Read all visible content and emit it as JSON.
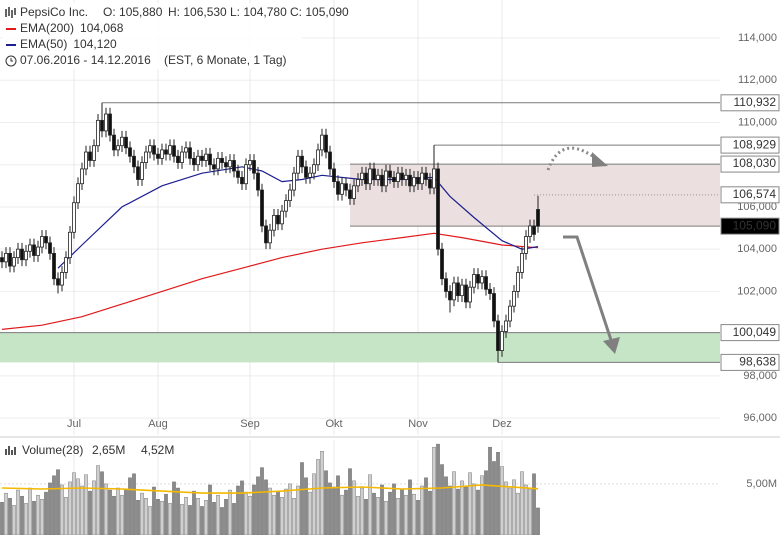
{
  "chart_data": [
    {
      "type": "candlestick",
      "title": "PepsiCo Inc.",
      "quote": [
        {
          "name": "O:",
          "value": "105,880"
        },
        {
          "name": "H:",
          "value": "106,530"
        },
        {
          "name": "L:",
          "value": "104,780"
        },
        {
          "name": "C:",
          "value": "105,090"
        }
      ],
      "date_range": "07.06.2016 - 14.12.2016",
      "period": "(EST, 6 Monate, 1 Tag)",
      "open": [
        103.6,
        103.4,
        103.8,
        103.2,
        103.6,
        104.0,
        103.5,
        103.9,
        104.2,
        103.7,
        104.1,
        104.6,
        104.3,
        103.8,
        102.6,
        102.3,
        102.9,
        103.6,
        104.8,
        106.2,
        107.1,
        107.8,
        108.6,
        108.2,
        108.9,
        110.1,
        109.6,
        110.4,
        109.4,
        108.7,
        108.9,
        109.3,
        108.8,
        108.4,
        107.9,
        107.3,
        108.1,
        108.6,
        108.9,
        108.5,
        108.3,
        108.7,
        108.5,
        108.9,
        108.4,
        108.1,
        108.6,
        108.8,
        108.3,
        108.0,
        108.4,
        108.2,
        108.5,
        108.0,
        107.8,
        108.3,
        108.1,
        107.9,
        108.2,
        107.7,
        107.4,
        107.1,
        108.0,
        108.2,
        107.6,
        106.8,
        105.1,
        104.3,
        104.9,
        105.6,
        105.2,
        105.8,
        106.3,
        106.8,
        107.6,
        108.4,
        107.9,
        107.4,
        107.6,
        108.0,
        108.7,
        109.4,
        108.6,
        107.8,
        107.2,
        106.6,
        107.1,
        106.8,
        106.4,
        107.0,
        107.3,
        107.6,
        107.1,
        107.8,
        107.3,
        107.5,
        107.0,
        107.7,
        107.4,
        107.2,
        107.6,
        107.3,
        107.5,
        107.0,
        107.4,
        107.1,
        107.6,
        107.3,
        106.9,
        107.8,
        104.0,
        102.6,
        102.0,
        101.6,
        102.4,
        101.8,
        102.3,
        101.5,
        102.2,
        102.8,
        102.4,
        102.7,
        102.1,
        101.9,
        100.6,
        99.2,
        100.1,
        100.6,
        101.3,
        102.0,
        102.9,
        103.8,
        104.6,
        105.1,
        105.88
      ],
      "high": [
        103.9,
        104.1,
        104.1,
        103.9,
        104.3,
        104.3,
        104.2,
        104.5,
        104.5,
        104.4,
        104.9,
        104.9,
        104.6,
        104.1,
        102.9,
        103.2,
        103.9,
        105.1,
        106.5,
        107.4,
        108.1,
        108.9,
        108.9,
        109.2,
        110.4,
        110.932,
        110.7,
        110.7,
        109.7,
        109.2,
        109.6,
        109.6,
        109.1,
        108.7,
        108.2,
        108.4,
        108.9,
        109.2,
        109.2,
        108.8,
        109.0,
        109.0,
        109.2,
        109.2,
        108.7,
        108.9,
        109.1,
        109.1,
        108.6,
        108.7,
        108.7,
        108.8,
        108.8,
        108.3,
        108.6,
        108.6,
        108.4,
        108.5,
        108.5,
        108.0,
        107.7,
        108.3,
        108.5,
        108.5,
        107.9,
        107.1,
        105.4,
        105.2,
        105.9,
        105.9,
        106.1,
        106.6,
        107.1,
        107.9,
        108.7,
        108.7,
        108.2,
        107.9,
        108.3,
        109.0,
        109.7,
        109.7,
        108.9,
        108.1,
        107.5,
        107.4,
        107.4,
        107.1,
        107.3,
        107.6,
        107.9,
        107.9,
        108.1,
        108.1,
        107.8,
        107.8,
        108.0,
        108.0,
        107.7,
        107.9,
        107.9,
        107.8,
        107.8,
        107.7,
        107.7,
        107.9,
        107.9,
        107.6,
        108.929,
        108.1,
        104.3,
        102.9,
        102.3,
        102.7,
        102.7,
        102.6,
        102.6,
        102.5,
        103.1,
        103.1,
        103.0,
        103.0,
        102.4,
        102.2,
        100.9,
        100.4,
        100.9,
        101.6,
        102.3,
        103.2,
        104.1,
        104.9,
        105.4,
        105.4,
        106.53
      ],
      "low": [
        103.1,
        103.1,
        102.9,
        102.9,
        103.3,
        103.2,
        103.2,
        103.6,
        103.4,
        103.4,
        103.8,
        104.0,
        103.5,
        102.3,
        101.9,
        102.0,
        102.6,
        103.3,
        104.5,
        105.9,
        106.8,
        107.5,
        107.9,
        107.9,
        108.6,
        109.3,
        109.3,
        109.1,
        108.4,
        108.4,
        108.6,
        108.5,
        108.1,
        107.6,
        107.0,
        107.0,
        107.8,
        108.3,
        108.2,
        108.0,
        108.0,
        108.2,
        108.2,
        108.1,
        107.8,
        107.8,
        108.3,
        108.0,
        107.7,
        107.7,
        107.9,
        107.9,
        107.7,
        107.5,
        107.5,
        107.8,
        107.6,
        107.6,
        107.4,
        107.1,
        106.8,
        106.8,
        107.7,
        107.3,
        106.5,
        104.8,
        104.0,
        104.0,
        104.6,
        104.9,
        104.9,
        105.5,
        106.0,
        106.5,
        107.3,
        107.6,
        107.1,
        107.1,
        107.3,
        107.7,
        108.4,
        108.3,
        107.5,
        106.9,
        106.3,
        106.3,
        106.5,
        106.1,
        106.1,
        106.7,
        107.0,
        106.8,
        106.8,
        107.0,
        107.0,
        106.7,
        106.7,
        107.1,
        106.9,
        106.9,
        107.0,
        107.0,
        106.7,
        106.7,
        106.8,
        106.8,
        107.0,
        106.6,
        106.6,
        103.7,
        102.3,
        101.7,
        101.0,
        101.3,
        101.5,
        101.5,
        101.2,
        101.2,
        101.9,
        102.1,
        102.1,
        101.8,
        101.6,
        100.3,
        98.638,
        98.9,
        99.8,
        100.3,
        101.0,
        101.7,
        102.6,
        103.5,
        104.3,
        104.4,
        104.78
      ],
      "close": [
        103.4,
        103.8,
        103.2,
        103.6,
        104.0,
        103.5,
        103.9,
        104.2,
        103.7,
        104.1,
        104.6,
        104.3,
        103.8,
        102.6,
        102.3,
        102.9,
        103.6,
        104.8,
        106.2,
        107.1,
        107.8,
        108.6,
        108.2,
        108.9,
        110.1,
        109.6,
        110.4,
        109.4,
        108.7,
        108.9,
        109.3,
        108.8,
        108.4,
        107.9,
        107.3,
        108.1,
        108.6,
        108.9,
        108.5,
        108.3,
        108.7,
        108.5,
        108.9,
        108.4,
        108.1,
        108.6,
        108.8,
        108.3,
        108.0,
        108.4,
        108.2,
        108.5,
        108.0,
        107.8,
        108.3,
        108.1,
        107.9,
        108.2,
        107.7,
        107.4,
        107.1,
        108.0,
        108.2,
        107.6,
        106.8,
        105.1,
        104.3,
        104.9,
        105.6,
        105.2,
        105.8,
        106.3,
        106.8,
        107.6,
        108.4,
        107.9,
        107.4,
        107.6,
        108.0,
        108.7,
        109.4,
        108.6,
        107.8,
        107.2,
        106.6,
        107.1,
        106.8,
        106.4,
        107.0,
        107.3,
        107.6,
        107.1,
        107.8,
        107.3,
        107.5,
        107.0,
        107.7,
        107.4,
        107.2,
        107.6,
        107.3,
        107.5,
        107.0,
        107.4,
        107.1,
        107.6,
        107.3,
        106.9,
        107.8,
        104.0,
        102.6,
        102.0,
        101.6,
        102.4,
        101.8,
        102.3,
        101.5,
        102.2,
        102.8,
        102.4,
        102.7,
        102.1,
        101.9,
        100.6,
        99.2,
        100.1,
        100.6,
        101.3,
        102.0,
        102.9,
        103.8,
        104.6,
        105.1,
        104.7,
        105.09
      ],
      "series": [
        {
          "name": "EMA(200)",
          "color": "#e0191b",
          "current_label": "104,068",
          "x": [
            0,
            10,
            20,
            30,
            40,
            50,
            60,
            70,
            80,
            90,
            100,
            108,
            115,
            125,
            134
          ],
          "values": [
            100.2,
            100.4,
            100.8,
            101.4,
            102.0,
            102.6,
            103.1,
            103.6,
            104.0,
            104.3,
            104.55,
            104.75,
            104.55,
            104.2,
            104.068
          ]
        },
        {
          "name": "EMA(50)",
          "color": "#1b1f8f",
          "current_label": "104,120",
          "x": [
            14,
            20,
            30,
            40,
            50,
            60,
            65,
            70,
            75,
            80,
            90,
            100,
            108,
            112,
            118,
            125,
            130,
            134
          ],
          "values": [
            103.1,
            104.2,
            106.0,
            107.0,
            107.6,
            107.9,
            107.7,
            107.2,
            107.3,
            107.5,
            107.3,
            107.3,
            107.4,
            106.5,
            105.5,
            104.4,
            104.0,
            104.12
          ]
        }
      ],
      "levels": [
        {
          "value": 110.932,
          "label": "110,932",
          "start": 25
        },
        {
          "value": 108.929,
          "label": "108,929",
          "start": 108
        },
        {
          "value": 108.03,
          "label": "108,030",
          "start": 87
        },
        {
          "value": 106.574,
          "label": "106,574",
          "start": 133,
          "dash": "dotted"
        },
        {
          "value": 105.09,
          "label": "105,090",
          "start": 87,
          "highlight": true
        },
        {
          "value": 100.049,
          "label": "100,049",
          "start": -0.5
        },
        {
          "value": 98.638,
          "label": "98,638",
          "start": 124
        }
      ],
      "zones": [
        {
          "from": 105.09,
          "to": 108.03,
          "start": 87,
          "color": "#ecdfdf"
        },
        {
          "from": 98.638,
          "to": 100.049,
          "start": -0.5,
          "color": "#c6e4c6"
        }
      ],
      "xlim": [
        -0.5,
        179.5
      ],
      "xticks": [
        {
          "value": 18,
          "label": "Jul"
        },
        {
          "value": 39,
          "label": "Aug"
        },
        {
          "value": 62,
          "label": "Sep"
        },
        {
          "value": 83,
          "label": "Okt"
        },
        {
          "value": 104,
          "label": "Nov"
        },
        {
          "value": 125,
          "label": "Dez"
        }
      ],
      "ylim": [
        95.2,
        115.8
      ],
      "yticks": [
        {
          "value": 96,
          "label": "96,000"
        },
        {
          "value": 98,
          "label": "98,000"
        },
        {
          "value": 100,
          "label": "100,000"
        },
        {
          "value": 102,
          "label": "102,000"
        },
        {
          "value": 104,
          "label": "104,000"
        },
        {
          "value": 106,
          "label": "106,000"
        },
        {
          "value": 108,
          "label": "108,000"
        },
        {
          "value": 110,
          "label": "110,000"
        },
        {
          "value": 112,
          "label": "112,000"
        },
        {
          "value": 114,
          "label": "114,000"
        }
      ],
      "grid": true
    },
    {
      "type": "bar",
      "title": "Volume(28)",
      "current_label": "2,65M",
      "values": [
        3.2,
        4.1,
        3.6,
        2.9,
        4.4,
        3.8,
        3.1,
        4.6,
        3.3,
        3.9,
        3.5,
        4.2,
        5.1,
        5.8,
        6.4,
        4.9,
        3.7,
        5.2,
        6.1,
        5.5,
        4.8,
        5.9,
        4.3,
        5.3,
        6.8,
        6.2,
        5.0,
        4.4,
        3.8,
        4.6,
        3.9,
        4.5,
        5.6,
        6.0,
        3.4,
        4.1,
        3.6,
        2.8,
        4.7,
        3.5,
        3.3,
        4.0,
        3.1,
        5.2,
        4.6,
        3.0,
        3.7,
        2.9,
        4.3,
        3.6,
        2.8,
        3.4,
        4.9,
        3.2,
        3.9,
        2.7,
        3.5,
        4.4,
        3.1,
        4.8,
        5.3,
        4.2,
        3.8,
        4.9,
        5.7,
        6.6,
        5.4,
        4.6,
        3.9,
        4.3,
        3.7,
        4.5,
        5.0,
        3.6,
        4.8,
        7.1,
        5.6,
        4.2,
        6.0,
        7.4,
        8.2,
        6.3,
        5.1,
        4.7,
        5.8,
        3.9,
        4.4,
        6.5,
        5.3,
        3.8,
        4.6,
        3.5,
        5.9,
        4.1,
        3.7,
        4.9,
        3.3,
        4.2,
        5.0,
        3.6,
        4.5,
        3.9,
        5.4,
        4.0,
        3.4,
        4.8,
        5.6,
        4.3,
        8.6,
        8.9,
        6.9,
        5.7,
        4.8,
        6.2,
        4.5,
        5.3,
        4.7,
        6.1,
        5.0,
        4.4,
        5.8,
        6.3,
        8.6,
        7.2,
        8.1,
        6.7,
        5.2,
        4.6,
        5.4,
        4.1,
        6.2,
        4.9,
        4.5,
        6.0,
        2.65
      ],
      "colors": {
        "up": "#cfcfcf",
        "down": "#8a8a8a"
      },
      "series": [
        {
          "name": "MA",
          "color": "#f5b800",
          "current_label": "4,52M",
          "x": [
            0,
            10,
            20,
            30,
            40,
            50,
            60,
            70,
            80,
            90,
            100,
            110,
            120,
            134
          ],
          "values": [
            4.6,
            4.5,
            4.6,
            4.5,
            4.3,
            4.1,
            4.1,
            4.3,
            4.6,
            4.7,
            4.5,
            4.6,
            4.9,
            4.52
          ]
        }
      ],
      "ylim": [
        0,
        9.3
      ],
      "yticks": [
        {
          "value": 5,
          "label": "5,00M"
        }
      ],
      "grid": true
    }
  ]
}
